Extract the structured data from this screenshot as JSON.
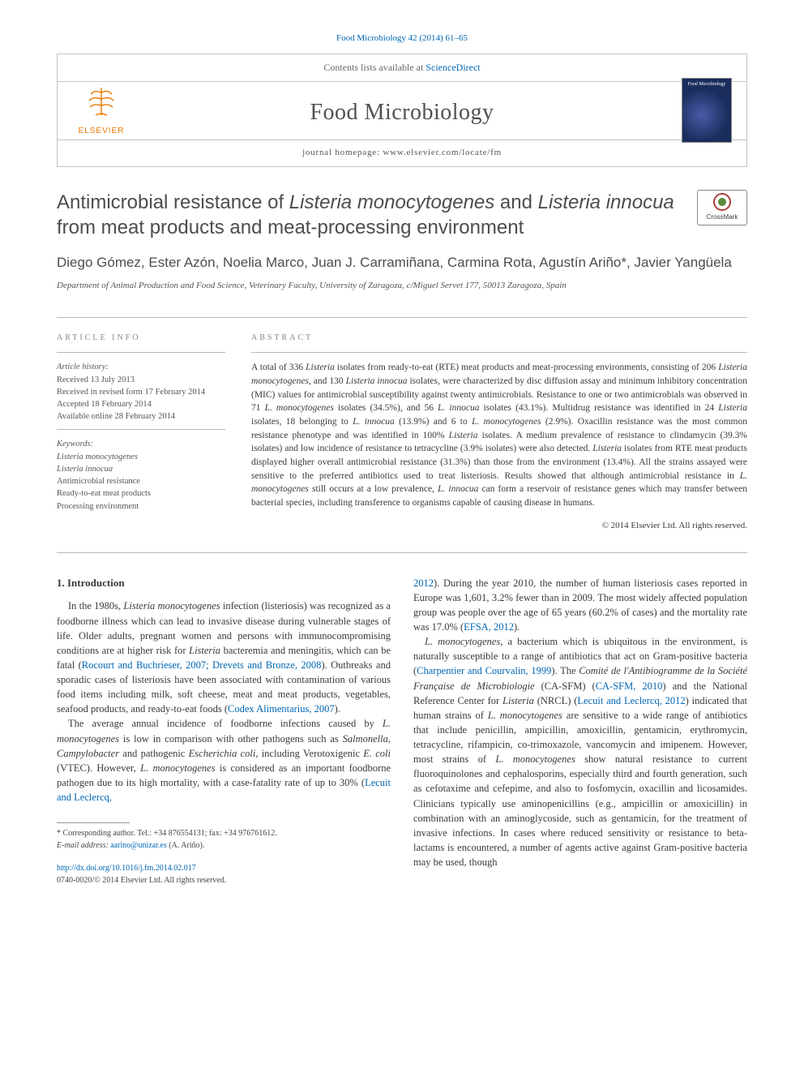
{
  "citation": "Food Microbiology 42 (2014) 61–65",
  "header": {
    "contents_prefix": "Contents lists available at ",
    "contents_link": "ScienceDirect",
    "journal": "Food Microbiology",
    "homepage_prefix": "journal homepage: ",
    "homepage": "www.elsevier.com/locate/fm",
    "publisher": "ELSEVIER",
    "cover_title": "Food Microbiology"
  },
  "title_html": "Antimicrobial resistance of <em>Listeria monocytogenes</em> and <em>Listeria innocua</em> from meat products and meat-processing environment",
  "crossmark": "CrossMark",
  "authors": "Diego Gómez, Ester Azón, Noelia Marco, Juan J. Carramiñana, Carmina Rota, Agustín Ariño*, Javier Yangüela",
  "affiliation": "Department of Animal Production and Food Science, Veterinary Faculty, University of Zaragoza, c/Miguel Servet 177, 50013 Zaragoza, Spain",
  "article_info": {
    "head": "ARTICLE INFO",
    "history_head": "Article history:",
    "received": "Received 13 July 2013",
    "revised": "Received in revised form 17 February 2014",
    "accepted": "Accepted 18 February 2014",
    "online": "Available online 28 February 2014",
    "kw_head": "Keywords:",
    "keywords": [
      "Listeria monocytogenes",
      "Listeria innocua",
      "Antimicrobial resistance",
      "Ready-to-eat meat products",
      "Processing environment"
    ]
  },
  "abstract": {
    "head": "ABSTRACT",
    "body_html": "A total of 336 <em>Listeria</em> isolates from ready-to-eat (RTE) meat products and meat-processing environments, consisting of 206 <em>Listeria monocytogenes</em>, and 130 <em>Listeria innocua</em> isolates, were characterized by disc diffusion assay and minimum inhibitory concentration (MIC) values for antimicrobial susceptibility against twenty antimicrobials. Resistance to one or two antimicrobials was observed in 71 <em>L. monocytogenes</em> isolates (34.5%), and 56 <em>L. innocua</em> isolates (43.1%). Multidrug resistance was identified in 24 <em>Listeria</em> isolates, 18 belonging to <em>L. innocua</em> (13.9%) and 6 to <em>L. monocytogenes</em> (2.9%). Oxacillin resistance was the most common resistance phenotype and was identified in 100% <em>Listeria</em> isolates. A medium prevalence of resistance to clindamycin (39.3% isolates) and low incidence of resistance to tetracycline (3.9% isolates) were also detected. <em>Listeria</em> isolates from RTE meat products displayed higher overall antimicrobial resistance (31.3%) than those from the environment (13.4%). All the strains assayed were sensitive to the preferred antibiotics used to treat listeriosis. Results showed that although antimicrobial resistance in <em>L. monocytogenes</em> still occurs at a low prevalence, <em>L. innocua</em> can form a reservoir of resistance genes which may transfer between bacterial species, including transference to organisms capable of causing disease in humans.",
    "copyright": "© 2014 Elsevier Ltd. All rights reserved."
  },
  "intro": {
    "head": "1. Introduction",
    "p1_html": "In the 1980s, <em>Listeria monocytogenes</em> infection (listeriosis) was recognized as a foodborne illness which can lead to invasive disease during vulnerable stages of life. Older adults, pregnant women and persons with immunocompromising conditions are at higher risk for <em>Listeria</em> bacteremia and meningitis, which can be fatal (<span class=\"ref\">Rocourt and Buchrieser, 2007; Drevets and Bronze, 2008</span>). Outbreaks and sporadic cases of listeriosis have been associated with contamination of various food items including milk, soft cheese, meat and meat products, vegetables, seafood products, and ready-to-eat foods (<span class=\"ref\">Codex Alimentarius, 2007</span>).",
    "p2_html": "The average annual incidence of foodborne infections caused by <em>L. monocytogenes</em> is low in comparison with other pathogens such as <em>Salmonella</em>, <em>Campylobacter</em> and pathogenic <em>Escherichia coli</em>, including Verotoxigenic <em>E. coli</em> (VTEC). However, <em>L. monocytogenes</em> is considered as an important foodborne pathogen due to its high mortality, with a case-fatality rate of up to 30% (<span class=\"ref\">Lecuit and Leclercq,</span>",
    "p2b_html": "<span class=\"ref\">2012</span>). During the year 2010, the number of human listeriosis cases reported in Europe was 1,601, 3.2% fewer than in 2009. The most widely affected population group was people over the age of 65 years (60.2% of cases) and the mortality rate was 17.0% (<span class=\"ref\">EFSA, 2012</span>).",
    "p3_html": "<em>L. monocytogenes</em>, a bacterium which is ubiquitous in the environment, is naturally susceptible to a range of antibiotics that act on Gram-positive bacteria (<span class=\"ref\">Charpentier and Courvalin, 1999</span>). The <em>Comité de l'Antibiogramme de la Société Française de Microbiologie</em> (CA-SFM) (<span class=\"ref\">CA-SFM, 2010</span>) and the National Reference Center for <em>Listeria</em> (NRCL) (<span class=\"ref\">Lecuit and Leclercq, 2012</span>) indicated that human strains of <em>L. monocytogenes</em> are sensitive to a wide range of antibiotics that include penicillin, ampicillin, amoxicillin, gentamicin, erythromycin, tetracycline, rifampicin, co-trimoxazole, vancomycin and imipenem. However, most strains of <em>L. monocytogenes</em> show natural resistance to current fluoroquinolones and cephalosporins, especially third and fourth generation, such as cefotaxime and cefepime, and also to fosfomycin, oxacillin and licosamides. Clinicians typically use aminopenicillins (e.g., ampicillin or amoxicillin) in combination with an aminoglycoside, such as gentamicin, for the treatment of invasive infections. In cases where reduced sensitivity or resistance to beta-lactams is encountered, a number of agents active against Gram-positive bacteria may be used, though"
  },
  "footnote": {
    "corresponding": "* Corresponding author. Tel.: +34 876554131; fax: +34 976761612.",
    "email_label": "E-mail address: ",
    "email": "aarino@unizar.es",
    "email_name": " (A. Ariño)."
  },
  "doi": {
    "url": "http://dx.doi.org/10.1016/j.fm.2014.02.017",
    "issn": "0740-0020/© 2014 Elsevier Ltd. All rights reserved."
  },
  "colors": {
    "link": "#0066b3",
    "publisher": "#ea7600",
    "text": "#3a3a3a",
    "border": "#b8b8b8"
  }
}
